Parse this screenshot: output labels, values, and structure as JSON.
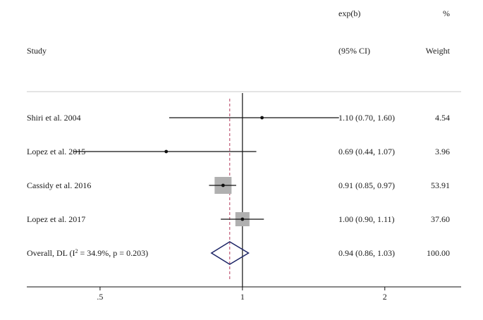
{
  "chart_data": {
    "type": "forest",
    "scale": "log",
    "headers": {
      "study": "Study",
      "effect_line1": "exp(b)",
      "effect_line2": "(95% CI)",
      "weight_line1": "%",
      "weight_line2": "Weight"
    },
    "studies": [
      {
        "label": "Shiri et al. 2004",
        "estimate": 1.1,
        "lower": 0.7,
        "upper": 1.6,
        "ci_text": "1.10 (0.70, 1.60)",
        "weight": 4.54,
        "weight_text": "4.54"
      },
      {
        "label": "Lopez et al. 2015",
        "estimate": 0.69,
        "lower": 0.44,
        "upper": 1.07,
        "ci_text": "0.69 (0.44, 1.07)",
        "weight": 3.96,
        "weight_text": "3.96"
      },
      {
        "label": "Cassidy et al. 2016",
        "estimate": 0.91,
        "lower": 0.85,
        "upper": 0.97,
        "ci_text": "0.91 (0.85, 0.97)",
        "weight": 53.91,
        "weight_text": "53.91"
      },
      {
        "label": "Lopez et al. 2017",
        "estimate": 1.0,
        "lower": 0.9,
        "upper": 1.11,
        "ci_text": "1.00 (0.90, 1.11)",
        "weight": 37.6,
        "weight_text": "37.60"
      }
    ],
    "overall": {
      "label_pre": "Overall, DL (I",
      "label_sup": "2",
      "label_post": " = 34.9%, p = 0.203)",
      "estimate": 0.94,
      "lower": 0.86,
      "upper": 1.03,
      "ci_text": "0.94 (0.86, 1.03)",
      "weight_text": "100.00"
    },
    "null_value": 1,
    "x_ticks": [
      {
        "value": 0.5,
        "label": ".5"
      },
      {
        "value": 1,
        "label": "1"
      },
      {
        "value": 2,
        "label": "2"
      }
    ],
    "xlim": [
      0.35,
      2.9
    ],
    "colors": {
      "box": "#b0b0b0",
      "diamond": "#1c2466",
      "overall_line": "#b3365b",
      "separator": "#c8c8c8",
      "line": "#111111"
    }
  }
}
